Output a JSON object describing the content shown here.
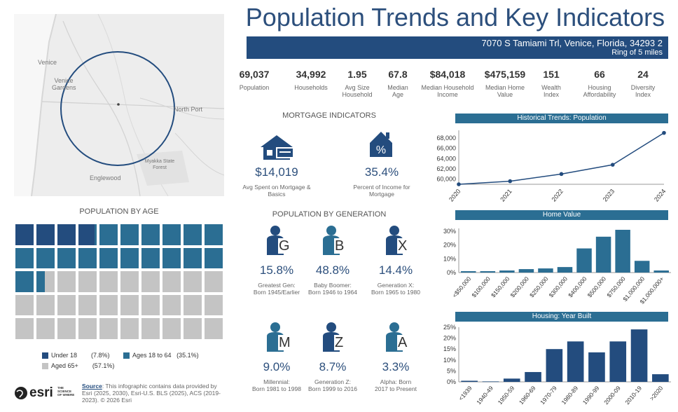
{
  "header": {
    "title": "Population Trends and Key Indicators",
    "address": "7070 S Tamiami Trl, Venice, Florida, 34293 2",
    "ring": "Ring of 5 miles"
  },
  "map": {
    "labels": [
      "Venice",
      "Venice Gardens",
      "North Port",
      "Myakka State Forest",
      "Englewood"
    ]
  },
  "kpis": [
    {
      "value": "69,037",
      "label": "Population"
    },
    {
      "value": "34,992",
      "label": "Households"
    },
    {
      "value": "1.95",
      "label": "Avg Size Household"
    },
    {
      "value": "67.8",
      "label": "Median Age"
    },
    {
      "value": "$84,018",
      "label": "Median Household Income"
    },
    {
      "value": "$475,159",
      "label": "Median Home Value"
    },
    {
      "value": "151",
      "label": "Wealth Index"
    },
    {
      "value": "66",
      "label": "Housing Affordability"
    },
    {
      "value": "24",
      "label": "Diversity Index"
    }
  ],
  "mortgage": {
    "heading": "MORTGAGE INDICATORS",
    "spent_value": "$14,019",
    "spent_label": "Avg Spent on Mortgage & Basics",
    "pct_value": "35.4%",
    "pct_label": "Percent of Income for Mortgage"
  },
  "age": {
    "heading": "POPULATION BY AGE",
    "legend": [
      {
        "label": "Under 18",
        "pct": "(7.8%)",
        "color": "#234c7e"
      },
      {
        "label": "Ages 18 to 64",
        "pct": "(35.1%)",
        "color": "#2b6e93"
      },
      {
        "label": "Aged 65+",
        "pct": "(57.1%)",
        "color": "#c4c4c4"
      }
    ],
    "shares": [
      7.8,
      35.1,
      57.1
    ]
  },
  "generation": {
    "heading": "POPULATION BY GENERATION",
    "items": [
      {
        "letter": "G",
        "value": "15.8%",
        "name": "Greatest Gen:",
        "years": "Born 1945/Earlier",
        "color": "#234c7e"
      },
      {
        "letter": "B",
        "value": "48.8%",
        "name": "Baby Boomer:",
        "years": "Born 1946 to 1964",
        "color": "#2b6e93"
      },
      {
        "letter": "X",
        "value": "14.4%",
        "name": "Generation X:",
        "years": "Born 1965 to 1980",
        "color": "#234c7e"
      },
      {
        "letter": "M",
        "value": "9.0%",
        "name": "Millennial:",
        "years": "Born 1981 to 1998",
        "color": "#2b6e93"
      },
      {
        "letter": "Z",
        "value": "8.7%",
        "name": "Generation Z:",
        "years": "Born 1999 to 2016",
        "color": "#234c7e"
      },
      {
        "letter": "A",
        "value": "3.3%",
        "name": "Alpha:  Born",
        "years": "2017 to Present",
        "color": "#2b6e93"
      }
    ]
  },
  "footer": {
    "logo_text": "esri",
    "tagline": "THE SCIENCE OF WHERE",
    "source_label": "Source",
    "source_text": ": This infographic contains data provided by Esri (2025, 2030), Esri-U.S. BLS (2025), ACS (2019-2023). © 2026 Esri"
  },
  "chart_data": [
    {
      "type": "line",
      "title": "Historical Trends: Population",
      "x": [
        "2020",
        "2021",
        "2022",
        "2023",
        "2024"
      ],
      "values": [
        59000,
        59600,
        61000,
        62800,
        69000
      ],
      "yticks": [
        "60,000",
        "62,000",
        "64,000",
        "66,000",
        "68,000"
      ],
      "ylim": [
        59000,
        69500
      ]
    },
    {
      "type": "bar",
      "title": "Home Value",
      "categories": [
        "<$50,000",
        "$100,000",
        "$150,000",
        "$200,000",
        "$250,000",
        "$300,000",
        "$400,000",
        "$500,000",
        "$750,000",
        "$1,000,000",
        "$1,000,000+"
      ],
      "values": [
        1,
        1,
        1.5,
        2.5,
        3,
        4,
        17.5,
        26,
        31,
        8.5,
        1.5
      ],
      "yticks": [
        "0%",
        "10%",
        "20%",
        "30%"
      ],
      "ylim": [
        0,
        32
      ]
    },
    {
      "type": "bar",
      "title": "Housing: Year Built",
      "categories": [
        "<1939",
        "1940-49",
        "1950-59",
        "1960-69",
        "1970-79",
        "1980-89",
        "1990-99",
        "2000-09",
        "2010-19",
        ">2020"
      ],
      "values": [
        0.5,
        0.2,
        1.5,
        4.5,
        15,
        18.5,
        13.5,
        18.5,
        24,
        3.5
      ],
      "yticks": [
        "0%",
        "5%",
        "10%",
        "15%",
        "20%",
        "25%"
      ],
      "ylim": [
        0,
        25
      ]
    }
  ]
}
